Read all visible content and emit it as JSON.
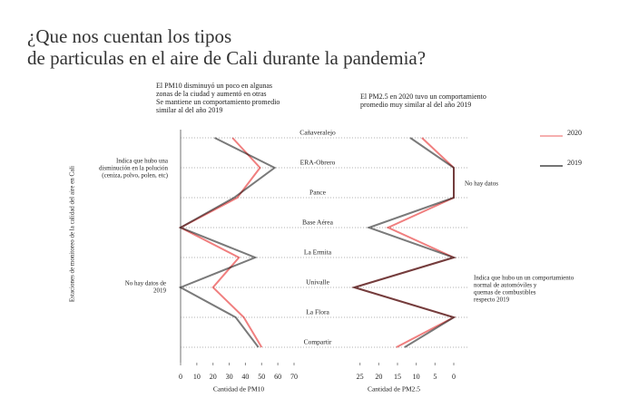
{
  "chart_data": {
    "type": "line",
    "title": [
      "¿Que nos cuentan los tipos",
      "de particulas en el aire de Cali durante la pandemia?"
    ],
    "y_label": "Estaciones de monitoreo de la calidad del aire en Cali",
    "categories": [
      "Cañaveralejo",
      "ERA-Obrero",
      "Pance",
      "Base Aérea",
      "La Ermita",
      "Univalle",
      "La Flora",
      "Compartir"
    ],
    "series": [
      {
        "name": "2020",
        "color": "#f07f7f"
      },
      {
        "name": "2019",
        "color": "#7a7a7a"
      }
    ],
    "panels": [
      {
        "note": [
          "El PM10 disminuyó un poco en algunas",
          "zonas de la ciudad y aumentó en otras",
          "Se mantiene un comportamiento promedio",
          "similar al del año 2019"
        ],
        "xlabel": "Cantidad de PM10",
        "xlim": [
          0,
          70
        ],
        "xticks": [
          0,
          10,
          20,
          30,
          40,
          50,
          60,
          70
        ],
        "values": [
          [
            32,
            49,
            35,
            0,
            36,
            20,
            39,
            50
          ],
          [
            21,
            58,
            33,
            0,
            46,
            0,
            34,
            48
          ]
        ]
      },
      {
        "note": [
          "El PM2.5 en 2020 tuvo un comportamiento",
          "promedio muy similar al del año 2019"
        ],
        "xlabel": "Cantidad de PM2.5",
        "xlim": [
          30,
          0
        ],
        "xticks": [
          25,
          20,
          15,
          10,
          5,
          0
        ],
        "values": [
          [
            8.5,
            0,
            0,
            17.5,
            0,
            26.5,
            0,
            15.3
          ],
          [
            11.6,
            0,
            0,
            22.6,
            0,
            26.5,
            0,
            13.1
          ]
        ]
      }
    ],
    "annotations": [
      [
        "Indica que hubo una",
        "disminución en la polución",
        "(ceniza, polvo, polen, etc)"
      ],
      [
        "No hay datos de",
        "2019"
      ],
      [
        "No hay datos"
      ],
      [
        "Indica que hubo un un comportamiento",
        "normal de automóviles y",
        "quemas de combustibles",
        "respecto 2019"
      ]
    ]
  }
}
